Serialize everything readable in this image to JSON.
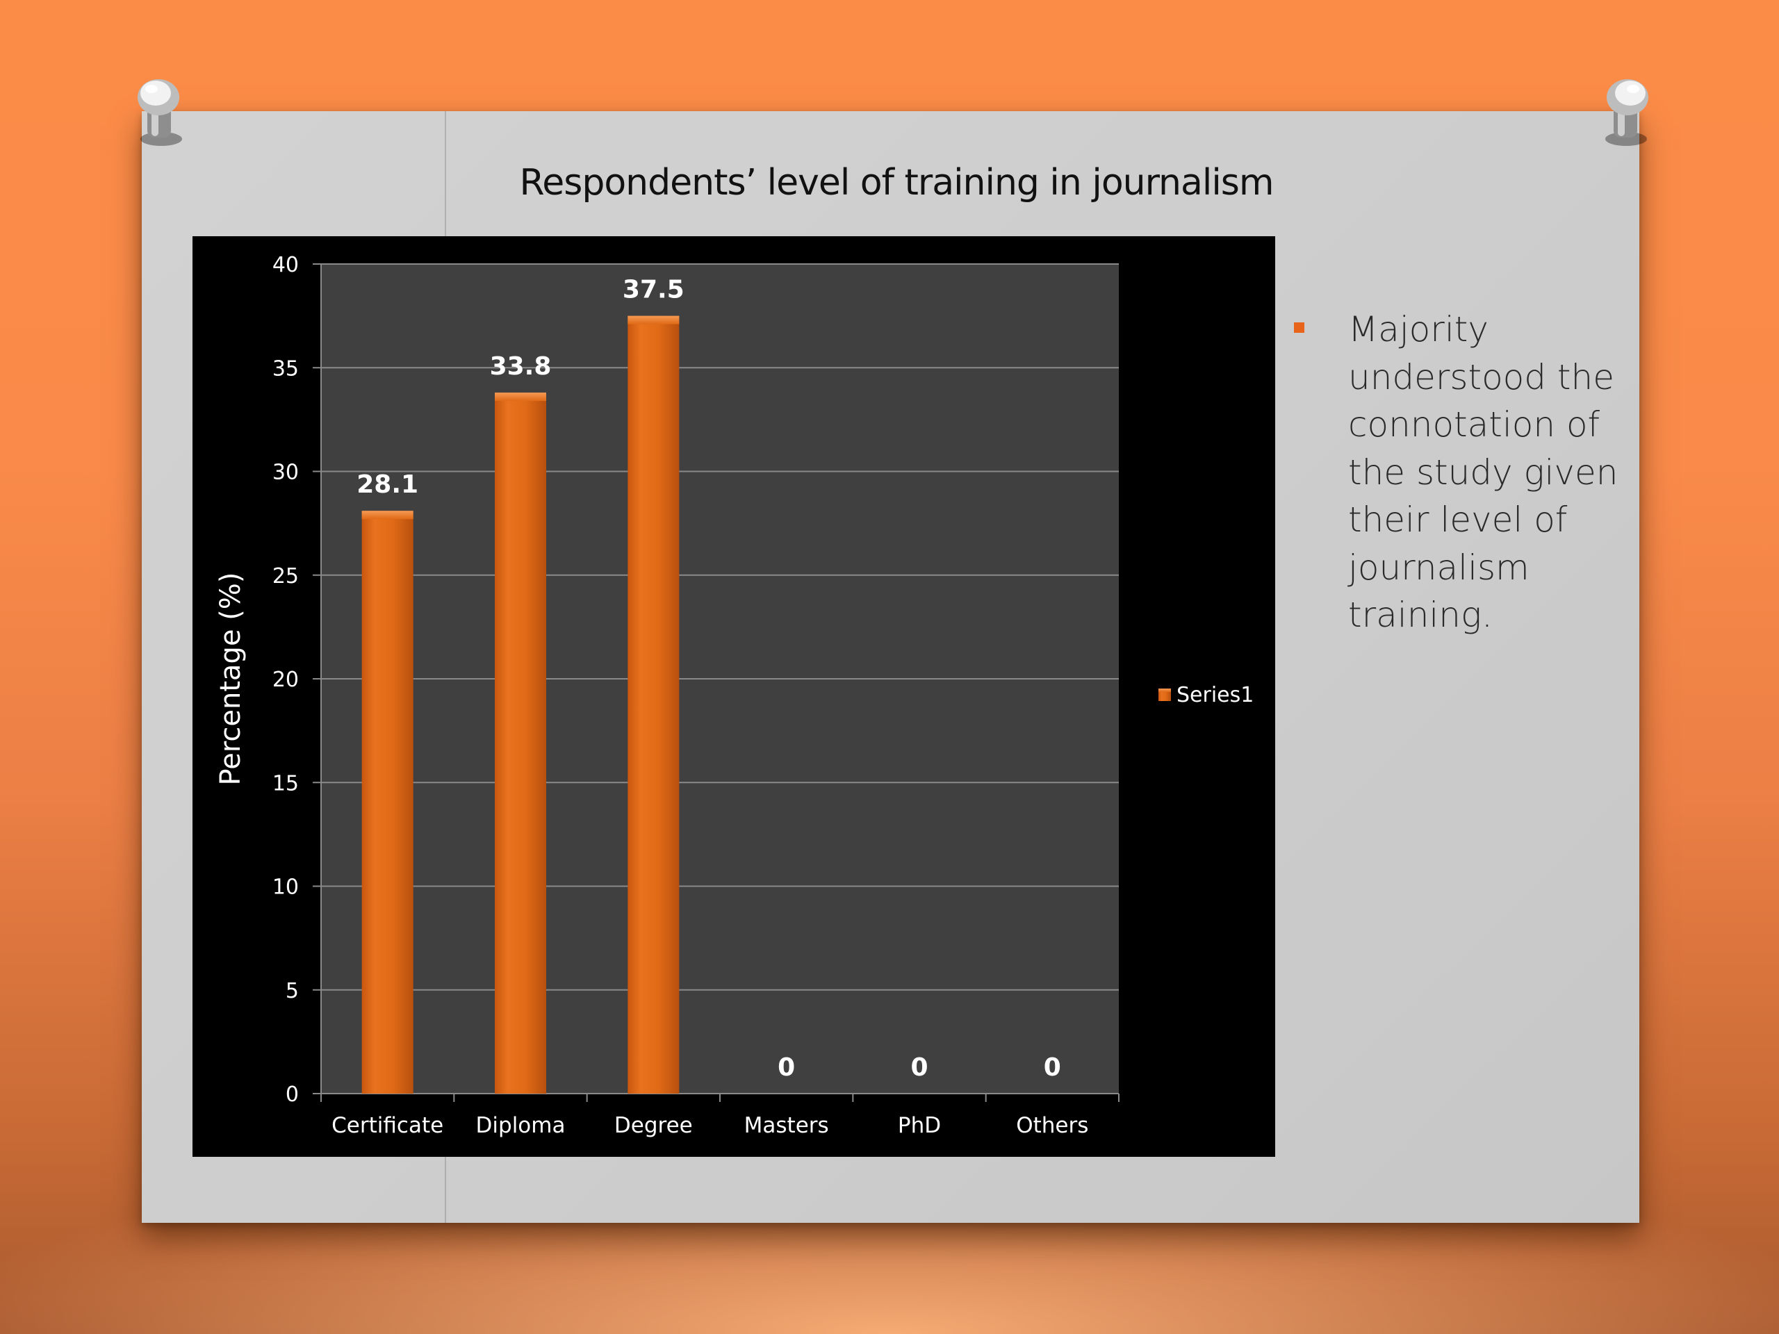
{
  "slide": {
    "title": "Respondents’ level of training in journalism",
    "bullet_text": "Majority understood the connotation of the study given their level of journalism training.",
    "colors": {
      "accent": "#e8641b",
      "background": "#fb8c47",
      "card": "#d0d0d0"
    }
  },
  "chart_data": {
    "type": "bar",
    "categories": [
      "Certificate",
      "Diploma",
      "Degree",
      "Masters",
      "PhD",
      "Others"
    ],
    "series": [
      {
        "name": "Series1",
        "values": [
          28.1,
          33.8,
          37.5,
          0,
          0,
          0
        ],
        "color": "#e06a16"
      }
    ],
    "data_labels": [
      "28.1",
      "33.8",
      "37.5",
      "0",
      "0",
      "0"
    ],
    "ylabel": "Percentage (%)",
    "xlabel": "",
    "ylim": [
      0,
      40
    ],
    "yticks": [
      0,
      5,
      10,
      15,
      20,
      25,
      30,
      35,
      40
    ],
    "grid": true,
    "legend": "right",
    "plot_background": "#404040",
    "chart_background": "#000000"
  }
}
